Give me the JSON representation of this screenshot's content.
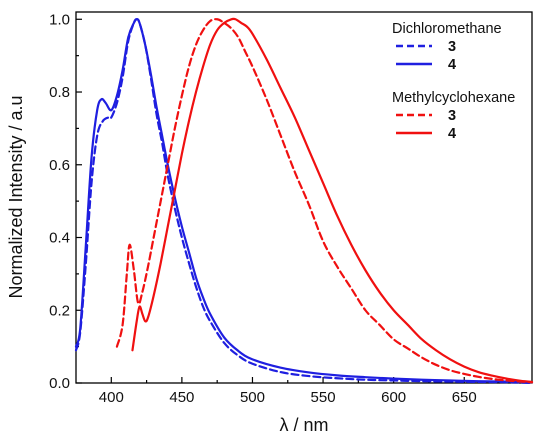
{
  "chart_data": {
    "type": "line",
    "xlabel": "λ / nm",
    "ylabel": "Normalized Intensity / a.u",
    "xlim": [
      375,
      698
    ],
    "ylim": [
      0,
      1.02
    ],
    "x_ticks": [
      400,
      450,
      500,
      550,
      600,
      650
    ],
    "y_ticks": [
      0.0,
      0.2,
      0.4,
      0.6,
      0.8,
      1.0
    ],
    "x_tick_labels": [
      "400",
      "450",
      "500",
      "550",
      "600",
      "650"
    ],
    "y_tick_labels": [
      "0.0",
      "0.2",
      "0.4",
      "0.6",
      "0.8",
      "1.0"
    ],
    "grid": false,
    "legend": {
      "placement": "top-right",
      "groups": [
        {
          "heading": "Dichloromethane",
          "entries": [
            {
              "label": "3",
              "color": "#1f1fe0",
              "dash": "dashed"
            },
            {
              "label": "4",
              "color": "#1f1fe0",
              "dash": "solid"
            }
          ]
        },
        {
          "heading": "Methylcyclohexane",
          "entries": [
            {
              "label": "3",
              "color": "#f01010",
              "dash": "dashed"
            },
            {
              "label": "4",
              "color": "#f01010",
              "dash": "solid"
            }
          ]
        }
      ]
    },
    "series": [
      {
        "solvent": "Dichloromethane",
        "label": "3",
        "color": "#1f1fe0",
        "dash": "dashed",
        "x": [
          375,
          378,
          382,
          386,
          390,
          394,
          398,
          400,
          404,
          408,
          412,
          416,
          418,
          420,
          424,
          428,
          432,
          436,
          440,
          445,
          450,
          455,
          460,
          465,
          470,
          480,
          490,
          500,
          520,
          540,
          560,
          580,
          600,
          620,
          640,
          660,
          680,
          698
        ],
        "y": [
          0.09,
          0.14,
          0.33,
          0.55,
          0.68,
          0.72,
          0.73,
          0.73,
          0.77,
          0.84,
          0.94,
          0.99,
          1.0,
          0.99,
          0.93,
          0.84,
          0.74,
          0.66,
          0.57,
          0.48,
          0.4,
          0.33,
          0.265,
          0.21,
          0.17,
          0.11,
          0.075,
          0.053,
          0.03,
          0.019,
          0.013,
          0.009,
          0.007,
          0.005,
          0.004,
          0.003,
          0.002,
          0.0
        ]
      },
      {
        "solvent": "Dichloromethane",
        "label": "4",
        "color": "#1f1fe0",
        "dash": "solid",
        "x": [
          375,
          378,
          382,
          386,
          390,
          393,
          396,
          400,
          404,
          408,
          412,
          416,
          418,
          420,
          424,
          428,
          432,
          436,
          440,
          445,
          450,
          455,
          460,
          465,
          470,
          480,
          490,
          500,
          520,
          540,
          560,
          580,
          600,
          620,
          640,
          660,
          680,
          698
        ],
        "y": [
          0.1,
          0.15,
          0.38,
          0.62,
          0.75,
          0.78,
          0.77,
          0.75,
          0.79,
          0.86,
          0.95,
          0.99,
          1.0,
          0.99,
          0.93,
          0.85,
          0.76,
          0.68,
          0.6,
          0.51,
          0.43,
          0.36,
          0.29,
          0.235,
          0.19,
          0.125,
          0.088,
          0.065,
          0.042,
          0.029,
          0.021,
          0.016,
          0.012,
          0.009,
          0.007,
          0.005,
          0.004,
          0.002
        ]
      },
      {
        "solvent": "Methylcyclohexane",
        "label": "3",
        "color": "#f01010",
        "dash": "dashed",
        "x": [
          404,
          408,
          411,
          413,
          416,
          419,
          422,
          426,
          430,
          435,
          440,
          445,
          450,
          455,
          460,
          465,
          470,
          475,
          480,
          485,
          490,
          495,
          500,
          510,
          520,
          530,
          540,
          550,
          560,
          570,
          580,
          590,
          600,
          610,
          620,
          630,
          640,
          650,
          660,
          670,
          680,
          690,
          698
        ],
        "y": [
          0.1,
          0.16,
          0.3,
          0.38,
          0.31,
          0.22,
          0.25,
          0.32,
          0.4,
          0.5,
          0.6,
          0.7,
          0.79,
          0.87,
          0.93,
          0.97,
          0.995,
          1.0,
          0.99,
          0.975,
          0.95,
          0.91,
          0.87,
          0.78,
          0.68,
          0.58,
          0.49,
          0.39,
          0.32,
          0.26,
          0.2,
          0.16,
          0.12,
          0.095,
          0.07,
          0.05,
          0.035,
          0.025,
          0.017,
          0.011,
          0.007,
          0.004,
          0.002
        ]
      },
      {
        "solvent": "Methylcyclohexane",
        "label": "4",
        "color": "#f01010",
        "dash": "solid",
        "x": [
          415,
          418,
          420,
          422,
          424,
          426,
          430,
          435,
          440,
          445,
          450,
          455,
          460,
          465,
          470,
          475,
          480,
          485,
          488,
          492,
          496,
          500,
          510,
          520,
          530,
          540,
          550,
          560,
          570,
          580,
          590,
          600,
          610,
          620,
          630,
          640,
          650,
          660,
          670,
          680,
          690,
          698
        ],
        "y": [
          0.09,
          0.17,
          0.21,
          0.19,
          0.17,
          0.18,
          0.24,
          0.33,
          0.43,
          0.53,
          0.63,
          0.72,
          0.8,
          0.87,
          0.93,
          0.97,
          0.99,
          1.0,
          1.0,
          0.99,
          0.98,
          0.96,
          0.89,
          0.81,
          0.73,
          0.64,
          0.55,
          0.46,
          0.38,
          0.31,
          0.25,
          0.2,
          0.16,
          0.12,
          0.09,
          0.065,
          0.045,
          0.03,
          0.02,
          0.012,
          0.006,
          0.003
        ]
      }
    ]
  }
}
